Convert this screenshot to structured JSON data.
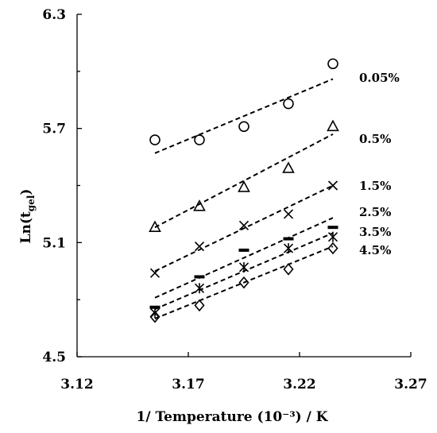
{
  "chart_data": {
    "type": "scatter",
    "title": "",
    "xlabel": "1/ Temperature (10⁻³) / K",
    "ylabel_main": "Ln",
    "ylabel_open": "(t",
    "ylabel_sub": "gel",
    "ylabel_close": ")",
    "xlim": [
      3.12,
      3.27
    ],
    "ylim": [
      4.5,
      6.3
    ],
    "xticks": [
      "3.12",
      "3.17",
      "3.22",
      "3.27"
    ],
    "yticks": [
      "4.5",
      "5.1",
      "5.7",
      "6.3"
    ],
    "grid": false,
    "legend": "inline-right",
    "series": [
      {
        "name": "0.05%",
        "marker": "circle",
        "x": [
          3.155,
          3.175,
          3.195,
          3.215,
          3.235
        ],
        "y": [
          5.64,
          5.64,
          5.71,
          5.83,
          6.04
        ],
        "fit": [
          [
            3.155,
            5.57
          ],
          [
            3.235,
            5.96
          ]
        ]
      },
      {
        "name": "0.5%",
        "marker": "triangle",
        "x": [
          3.155,
          3.175,
          3.195,
          3.215,
          3.235
        ],
        "y": [
          5.18,
          5.29,
          5.39,
          5.49,
          5.71
        ],
        "fit": [
          [
            3.155,
            5.18
          ],
          [
            3.235,
            5.67
          ]
        ]
      },
      {
        "name": "1.5%",
        "marker": "x",
        "x": [
          3.155,
          3.175,
          3.195,
          3.215,
          3.235
        ],
        "y": [
          4.94,
          5.08,
          5.19,
          5.25,
          5.4
        ],
        "fit": [
          [
            3.155,
            4.95
          ],
          [
            3.235,
            5.4
          ]
        ]
      },
      {
        "name": "2.5%",
        "marker": "dash",
        "x": [
          3.155,
          3.175,
          3.195,
          3.215,
          3.235
        ],
        "y": [
          4.76,
          4.92,
          5.06,
          5.12,
          5.18
        ],
        "fit": [
          [
            3.155,
            4.81
          ],
          [
            3.235,
            5.23
          ]
        ]
      },
      {
        "name": "3.5%",
        "marker": "asterisk",
        "x": [
          3.155,
          3.175,
          3.195,
          3.215,
          3.235
        ],
        "y": [
          4.73,
          4.86,
          4.97,
          5.07,
          5.13
        ],
        "fit": [
          [
            3.155,
            4.75
          ],
          [
            3.235,
            5.15
          ]
        ]
      },
      {
        "name": "4.5%",
        "marker": "diamond",
        "x": [
          3.155,
          3.175,
          3.195,
          3.215,
          3.235
        ],
        "y": [
          4.71,
          4.77,
          4.89,
          4.96,
          5.07
        ],
        "fit": [
          [
            3.155,
            4.7
          ],
          [
            3.235,
            5.08
          ]
        ]
      }
    ]
  }
}
